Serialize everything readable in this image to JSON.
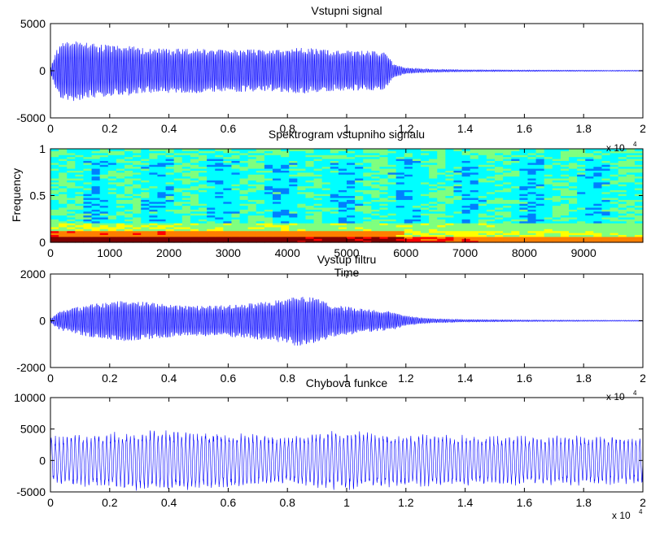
{
  "figure": {
    "background": "#ffffff",
    "line_color": "#0000ff"
  },
  "chart_data": [
    {
      "type": "line",
      "title": "Vstupni signal",
      "xlabel": "",
      "ylabel": "",
      "xlim": [
        0,
        20000
      ],
      "ylim": [
        -5000,
        5000
      ],
      "xticks": [
        0,
        2000,
        4000,
        6000,
        8000,
        10000,
        12000,
        14000,
        16000,
        18000,
        20000
      ],
      "xtick_labels": [
        "0",
        "0.2",
        "0.4",
        "0.6",
        "0.8",
        "1",
        "1.2",
        "1.4",
        "1.6",
        "1.8",
        "2"
      ],
      "yticks": [
        -5000,
        0,
        5000
      ],
      "ytick_labels": [
        "-5000",
        "0",
        "5000"
      ],
      "x_exponent_label": "x 10",
      "x_exponent_power": "4",
      "series": [
        {
          "envelope": {
            "x": [
              0,
              200,
              400,
              800,
              1500,
              2500,
              3500,
              4500,
              5500,
              6500,
              7500,
              8500,
              9500,
              10500,
              11300,
              11600,
              12000,
              12500,
              13000,
              14000,
              16000,
              18000,
              20000
            ],
            "amp": [
              300,
              2500,
              3800,
              3700,
              3300,
              3100,
              2700,
              2800,
              2600,
              2700,
              2500,
              2900,
              2500,
              2500,
              2300,
              800,
              350,
              250,
              180,
              120,
              90,
              70,
              60
            ]
          },
          "cycles": 400
        }
      ]
    },
    {
      "type": "heatmap",
      "title": "Spektrogram vstupniho signalu",
      "xlabel": "Time",
      "ylabel": "Frequency",
      "xlim": [
        0,
        10000
      ],
      "ylim": [
        0,
        1
      ],
      "xticks": [
        0,
        1000,
        2000,
        3000,
        4000,
        5000,
        6000,
        7000,
        8000,
        9000
      ],
      "xtick_labels": [
        "0",
        "1000",
        "2000",
        "3000",
        "4000",
        "5000",
        "6000",
        "7000",
        "8000",
        "9000"
      ],
      "yticks": [
        0,
        0.5,
        1
      ],
      "ytick_labels": [
        "0",
        "0.5",
        "1"
      ],
      "colormap": [
        "#00007f",
        "#0000ff",
        "#007fff",
        "#00ffff",
        "#7fff7f",
        "#ffff00",
        "#ff7f00",
        "#ff0000",
        "#7f0000"
      ],
      "time_bins": 72,
      "freq_bins": 48
    },
    {
      "type": "line",
      "title": "Vystup filtru",
      "xlabel": "",
      "ylabel": "",
      "xlim": [
        0,
        20000
      ],
      "ylim": [
        -2000,
        2000
      ],
      "xticks": [
        0,
        2000,
        4000,
        6000,
        8000,
        10000,
        12000,
        14000,
        16000,
        18000,
        20000
      ],
      "xtick_labels": [
        "0",
        "0.2",
        "0.4",
        "0.6",
        "0.8",
        "1",
        "1.2",
        "1.4",
        "1.6",
        "1.8",
        "2"
      ],
      "yticks": [
        -2000,
        0,
        2000
      ],
      "ytick_labels": [
        "-2000",
        "0",
        "2000"
      ],
      "x_exponent_label": "x 10",
      "x_exponent_power": "4",
      "series": [
        {
          "envelope": {
            "x": [
              0,
              300,
              800,
              1500,
              2500,
              3500,
              4500,
              5500,
              6500,
              7500,
              8500,
              9000,
              9500,
              10500,
              11500,
              12000,
              12500,
              13000,
              14000,
              16000,
              18000,
              20000
            ],
            "amp": [
              100,
              450,
              650,
              850,
              1000,
              900,
              750,
              750,
              850,
              1000,
              1300,
              1100,
              800,
              600,
              450,
              250,
              150,
              100,
              60,
              40,
              30,
              25
            ]
          },
          "cycles": 400
        }
      ]
    },
    {
      "type": "line",
      "title": "Chybova  funkce",
      "xlabel": "",
      "ylabel": "",
      "xlim": [
        0,
        20000
      ],
      "ylim": [
        -5000,
        10000
      ],
      "xticks": [
        0,
        2000,
        4000,
        6000,
        8000,
        10000,
        12000,
        14000,
        16000,
        18000,
        20000
      ],
      "xtick_labels": [
        "0",
        "0.2",
        "0.4",
        "0.6",
        "0.8",
        "1",
        "1.2",
        "1.4",
        "1.6",
        "1.8",
        "2"
      ],
      "yticks": [
        -5000,
        0,
        5000,
        10000
      ],
      "ytick_labels": [
        "-5000",
        "0",
        "5000",
        "10000"
      ],
      "x_exponent_label": "x 10",
      "x_exponent_power": "4",
      "series": [
        {
          "envelope": {
            "x": [
              0,
              1500,
              3000,
              4500,
              6000,
              7000,
              8000,
              9000,
              10000,
              11000,
              12000,
              14000,
              16000,
              18000,
              20000
            ],
            "amp": [
              3900,
              4300,
              4900,
              4900,
              4500,
              4200,
              3900,
              4600,
              4800,
              4500,
              4200,
              4100,
              4000,
              4000,
              3900
            ]
          },
          "cycles": 150
        }
      ]
    }
  ]
}
